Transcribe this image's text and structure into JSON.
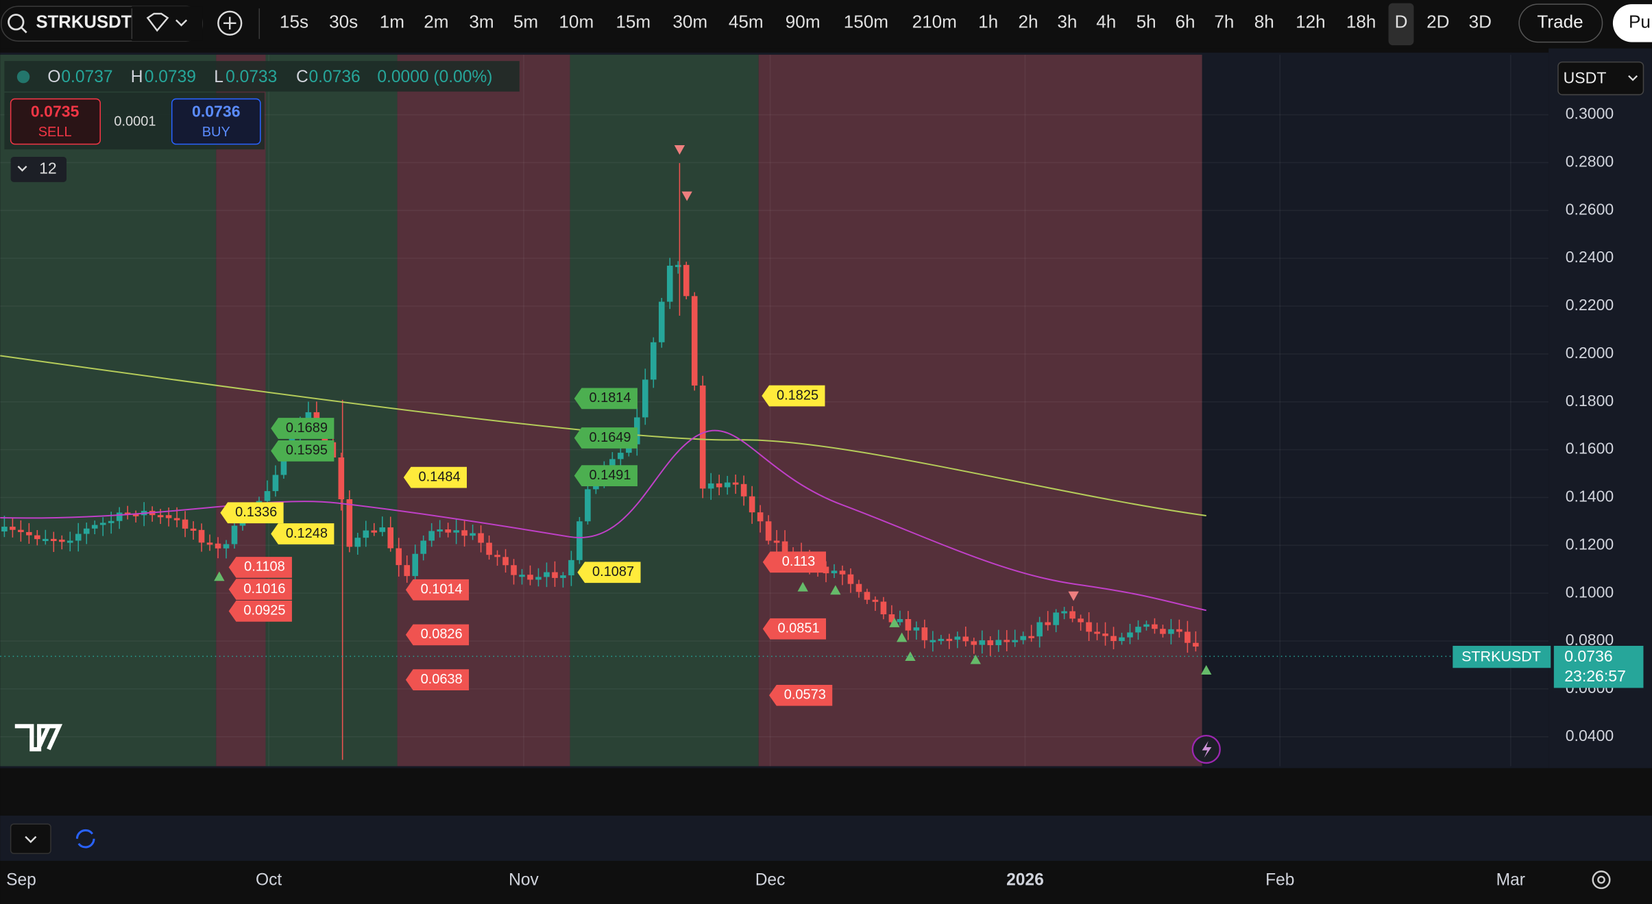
{
  "toolbar": {
    "symbol": "STRKUSDT",
    "intervals": [
      "15s",
      "30s",
      "1m",
      "2m",
      "3m",
      "5m",
      "10m",
      "15m",
      "30m",
      "45m",
      "90m",
      "150m",
      "210m",
      "1h",
      "2h",
      "3h",
      "4h",
      "5h",
      "6h",
      "7h",
      "8h",
      "12h",
      "18h",
      "D",
      "2D",
      "3D"
    ],
    "active_interval": 23,
    "trade": "Trade",
    "publish": "Pu"
  },
  "legend": {
    "ohlc": [
      {
        "key": "O",
        "value": "0.0737"
      },
      {
        "key": "H",
        "value": "0.0739"
      },
      {
        "key": "L",
        "value": "0.0733"
      },
      {
        "key": "C",
        "value": "0.0736"
      }
    ],
    "change": "0.0000 (0.00%)",
    "sell": {
      "price": "0.0735",
      "label": "SELL"
    },
    "spread": "0.0001",
    "buy": {
      "price": "0.0736",
      "label": "BUY"
    },
    "indicators": "12"
  },
  "chart": {
    "currency": "USDT",
    "ylim": [
      0.0277,
      0.3251
    ],
    "yticks": [
      {
        "value": 0.04,
        "label": "0.0400"
      },
      {
        "value": 0.06,
        "label": "0.0600"
      },
      {
        "value": 0.08,
        "label": "0.0800"
      },
      {
        "value": 0.1,
        "label": "0.1000"
      },
      {
        "value": 0.12,
        "label": "0.1200"
      },
      {
        "value": 0.14,
        "label": "0.1400"
      },
      {
        "value": 0.16,
        "label": "0.1600"
      },
      {
        "value": 0.18,
        "label": "0.1800"
      },
      {
        "value": 0.2,
        "label": "0.2000"
      },
      {
        "value": 0.22,
        "label": "0.2200"
      },
      {
        "value": 0.24,
        "label": "0.2400"
      },
      {
        "value": 0.26,
        "label": "0.2600"
      },
      {
        "value": 0.28,
        "label": "0.2800"
      },
      {
        "value": 0.3,
        "label": "0.3000"
      }
    ],
    "last_price": {
      "symbol": "STRKUSDT",
      "value": 0.0736,
      "countdown": "23:26:57"
    },
    "labels": [
      {
        "value": 0.1689,
        "color": "#4caf50"
      },
      {
        "value": 0.1595,
        "color": "#4caf50"
      },
      {
        "value": 0.1336,
        "color": "#ffeb3b"
      },
      {
        "value": 0.1248,
        "color": "#ffeb3b"
      },
      {
        "value": 0.1108,
        "color": "#f05350"
      },
      {
        "value": 0.1016,
        "color": "#f05350"
      },
      {
        "value": 0.0925,
        "color": "#f05350"
      },
      {
        "value": 0.1484,
        "color": "#ffeb3b"
      },
      {
        "value": 0.1014,
        "color": "#f05350"
      },
      {
        "value": 0.0826,
        "color": "#f05350"
      },
      {
        "value": 0.0638,
        "color": "#f05350"
      },
      {
        "value": 0.1814,
        "color": "#4caf50"
      },
      {
        "value": 0.1649,
        "color": "#4caf50"
      },
      {
        "value": 0.1491,
        "color": "#4caf50"
      },
      {
        "value": 0.1087,
        "color": "#ffeb3b"
      },
      {
        "value": 0.1825,
        "color": "#ffeb3b"
      },
      {
        "value": 0.113,
        "color": "#f05350"
      },
      {
        "value": 0.0851,
        "color": "#f05350"
      },
      {
        "value": 0.0573,
        "color": "#f05350"
      }
    ]
  },
  "time_axis": {
    "labels": [
      "Sep",
      "Oct",
      "Nov",
      "Dec",
      "2026",
      "Feb",
      "Mar"
    ],
    "bold": 4
  }
}
